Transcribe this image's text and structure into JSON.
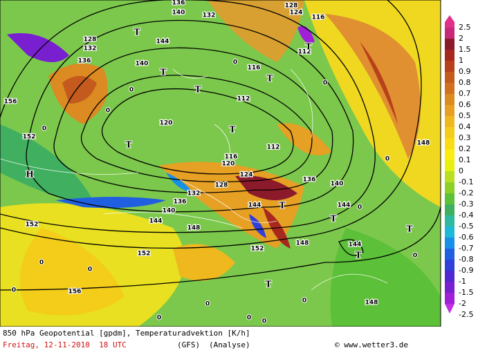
{
  "map": {
    "contour_labels": [
      "156",
      "152",
      "136",
      "132",
      "128",
      "144",
      "140",
      "136",
      "132",
      "120",
      "116",
      "112",
      "112",
      "116",
      "120",
      "124",
      "128",
      "132",
      "136",
      "140",
      "144",
      "148",
      "152",
      "152",
      "156",
      "144",
      "144",
      "144",
      "148",
      "148",
      "136",
      "140",
      "148",
      "112",
      "116",
      "124",
      "128",
      "152",
      "140"
    ],
    "zero_labels": [
      "0",
      "0",
      "0",
      "0",
      "0",
      "0",
      "0",
      "0",
      "0",
      "0",
      "0",
      "0",
      "0",
      "0",
      "0",
      "0"
    ],
    "symbols": [
      "H",
      "T",
      "T",
      "T",
      "T",
      "T",
      "T",
      "T",
      "T",
      "T",
      "T",
      "T",
      "T"
    ],
    "legend": {
      "labels": [
        2.5,
        2,
        1.5,
        1,
        0.9,
        0.8,
        0.7,
        0.6,
        0.5,
        0.4,
        0.3,
        0.2,
        0.1,
        0,
        -0.1,
        -0.2,
        -0.3,
        -0.4,
        -0.5,
        -0.6,
        -0.7,
        -0.8,
        -0.9,
        -1,
        -1.5,
        -2,
        -2.5
      ],
      "colors": [
        "#c8287a",
        "#8b1a2a",
        "#a8281e",
        "#b8401a",
        "#c45a1e",
        "#d07020",
        "#dc8a22",
        "#e6a024",
        "#eeb81e",
        "#f4cc1a",
        "#f8dc14",
        "#fcec10",
        "#e8f010",
        "#b8e020",
        "#8cd028",
        "#5cc038",
        "#40b060",
        "#30b8a0",
        "#20b8d8",
        "#1890e8",
        "#2060e0",
        "#3040d8",
        "#5028d0",
        "#7820d0",
        "#a020d8",
        "#c030e0"
      ]
    },
    "footer": {
      "description": "850 hPa Geopotential [gpdm], Temperaturadvektion [K/h]",
      "date": "Freitag, 12-11-2010  18 UTC",
      "model": "(GFS)",
      "run": "(Analyse)",
      "source": "© www.wetter3.de"
    }
  }
}
